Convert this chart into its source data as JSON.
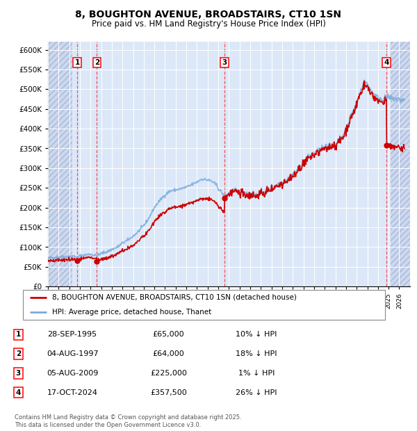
{
  "title": "8, BOUGHTON AVENUE, BROADSTAIRS, CT10 1SN",
  "subtitle": "Price paid vs. HM Land Registry's House Price Index (HPI)",
  "ylim": [
    0,
    620000
  ],
  "yticks": [
    0,
    50000,
    100000,
    150000,
    200000,
    250000,
    300000,
    350000,
    400000,
    450000,
    500000,
    550000,
    600000
  ],
  "xlim_start": 1993.0,
  "xlim_end": 2027.0,
  "background_color": "#ffffff",
  "plot_bg_color": "#dce8f8",
  "grid_color": "#ffffff",
  "transaction_dates": [
    1995.74,
    1997.59,
    2009.59,
    2024.79
  ],
  "transaction_prices": [
    65000,
    64000,
    225000,
    357500
  ],
  "transaction_labels": [
    "1",
    "2",
    "3",
    "4"
  ],
  "legend_entries": [
    "8, BOUGHTON AVENUE, BROADSTAIRS, CT10 1SN (detached house)",
    "HPI: Average price, detached house, Thanet"
  ],
  "table_rows": [
    {
      "num": "1",
      "date": "28-SEP-1995",
      "price": "£65,000",
      "note": "10% ↓ HPI"
    },
    {
      "num": "2",
      "date": "04-AUG-1997",
      "price": "£64,000",
      "note": "18% ↓ HPI"
    },
    {
      "num": "3",
      "date": "05-AUG-2009",
      "price": "£225,000",
      "note": "1% ↓ HPI"
    },
    {
      "num": "4",
      "date": "17-OCT-2024",
      "price": "£357,500",
      "note": "26% ↓ HPI"
    }
  ],
  "footer": "Contains HM Land Registry data © Crown copyright and database right 2025.\nThis data is licensed under the Open Government Licence v3.0.",
  "red_line_color": "#cc0000",
  "blue_line_color": "#7aaadd",
  "hpi_knots": [
    [
      1993.0,
      72000
    ],
    [
      1993.5,
      73500
    ],
    [
      1994.0,
      75000
    ],
    [
      1994.5,
      76000
    ],
    [
      1995.0,
      76500
    ],
    [
      1995.5,
      77000
    ],
    [
      1995.74,
      72500
    ],
    [
      1996.0,
      78000
    ],
    [
      1996.5,
      80000
    ],
    [
      1997.0,
      82000
    ],
    [
      1997.59,
      78000
    ],
    [
      1998.0,
      84000
    ],
    [
      1998.5,
      88000
    ],
    [
      1999.0,
      94000
    ],
    [
      1999.5,
      100000
    ],
    [
      2000.0,
      110000
    ],
    [
      2000.5,
      118000
    ],
    [
      2001.0,
      128000
    ],
    [
      2001.5,
      140000
    ],
    [
      2002.0,
      155000
    ],
    [
      2002.5,
      175000
    ],
    [
      2003.0,
      200000
    ],
    [
      2003.5,
      218000
    ],
    [
      2004.0,
      232000
    ],
    [
      2004.5,
      242000
    ],
    [
      2005.0,
      245000
    ],
    [
      2005.5,
      248000
    ],
    [
      2006.0,
      252000
    ],
    [
      2006.5,
      258000
    ],
    [
      2007.0,
      265000
    ],
    [
      2007.5,
      272000
    ],
    [
      2008.0,
      270000
    ],
    [
      2008.3,
      268000
    ],
    [
      2008.6,
      262000
    ],
    [
      2008.9,
      255000
    ],
    [
      2009.0,
      248000
    ],
    [
      2009.3,
      240000
    ],
    [
      2009.59,
      228000
    ],
    [
      2009.8,
      232000
    ],
    [
      2010.0,
      238000
    ],
    [
      2010.5,
      242000
    ],
    [
      2011.0,
      240000
    ],
    [
      2011.5,
      238000
    ],
    [
      2012.0,
      235000
    ],
    [
      2012.5,
      233000
    ],
    [
      2013.0,
      237000
    ],
    [
      2013.5,
      242000
    ],
    [
      2014.0,
      250000
    ],
    [
      2014.5,
      258000
    ],
    [
      2015.0,
      265000
    ],
    [
      2015.5,
      272000
    ],
    [
      2016.0,
      285000
    ],
    [
      2016.5,
      298000
    ],
    [
      2017.0,
      315000
    ],
    [
      2017.5,
      328000
    ],
    [
      2018.0,
      338000
    ],
    [
      2018.5,
      345000
    ],
    [
      2019.0,
      352000
    ],
    [
      2019.5,
      358000
    ],
    [
      2020.0,
      362000
    ],
    [
      2020.5,
      375000
    ],
    [
      2021.0,
      400000
    ],
    [
      2021.5,
      435000
    ],
    [
      2022.0,
      465000
    ],
    [
      2022.3,
      490000
    ],
    [
      2022.6,
      510000
    ],
    [
      2022.8,
      518000
    ],
    [
      2023.0,
      512000
    ],
    [
      2023.3,
      498000
    ],
    [
      2023.6,
      488000
    ],
    [
      2023.9,
      480000
    ],
    [
      2024.0,
      478000
    ],
    [
      2024.3,
      476000
    ],
    [
      2024.6,
      474000
    ],
    [
      2024.79,
      480000
    ],
    [
      2025.0,
      478000
    ],
    [
      2025.5,
      476000
    ],
    [
      2026.0,
      474000
    ],
    [
      2026.5,
      472000
    ]
  ],
  "hatch_left_end": 1995.3,
  "hatch_right_start": 2025.2
}
